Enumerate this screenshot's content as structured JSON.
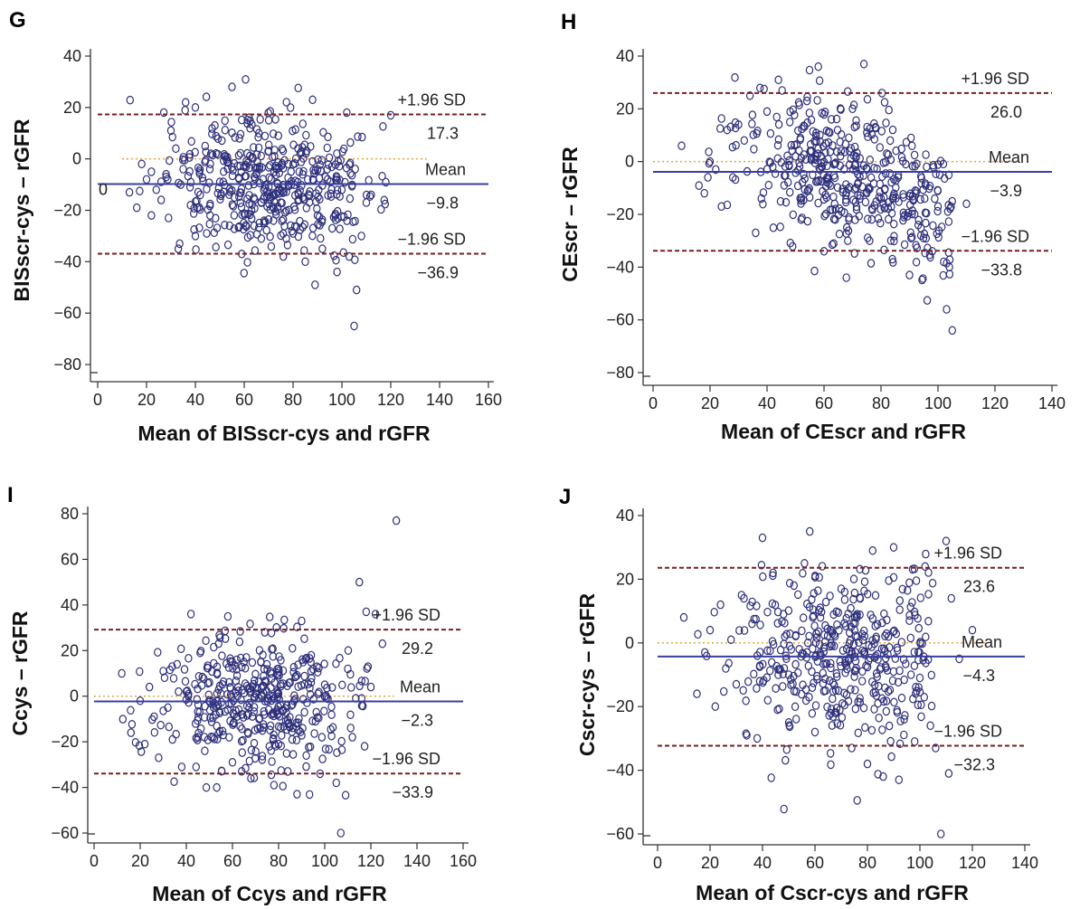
{
  "chart_data": [
    {
      "id": "G",
      "type": "scatter",
      "panel_letter": "G",
      "xlabel": "Mean of BISscr-cys and rGFR",
      "ylabel": "BISscr-cys – rGFR",
      "xlim": [
        0,
        160
      ],
      "ylim": [
        -85,
        45
      ],
      "xticks": [
        0,
        20,
        40,
        60,
        80,
        100,
        120,
        140,
        160
      ],
      "yticks": [
        -80,
        -60,
        -40,
        -20,
        0,
        20,
        40
      ],
      "xtick_labels": [
        "0",
        "20",
        "40",
        "60",
        "80",
        "100",
        "120",
        "140",
        "160"
      ],
      "ytick_labels": [
        "−80",
        "−60",
        "−40",
        "−20",
        "0",
        "20",
        "40"
      ],
      "extra_text": "0",
      "zero_line_range": [
        10,
        135
      ],
      "mean": -9.8,
      "upper": 17.3,
      "lower": -36.9,
      "lines": [
        {
          "label": "+1.96 SD",
          "value_label": "17.3",
          "value": 17.3
        },
        {
          "label": "Mean",
          "value_label": "−9.8",
          "value": -9.8
        },
        {
          "label": "−1.96 SD",
          "value_label": "−36.9",
          "value": -36.9
        }
      ],
      "seed": 7,
      "n_points": 420,
      "points": [
        [
          13,
          -13
        ],
        [
          16,
          -19
        ],
        [
          18,
          -2
        ],
        [
          20,
          -8
        ],
        [
          22,
          -5
        ],
        [
          22,
          -22
        ],
        [
          24,
          -12
        ],
        [
          26,
          -16
        ],
        [
          28,
          -6
        ],
        [
          29,
          -23
        ],
        [
          30,
          11
        ],
        [
          32,
          4
        ],
        [
          33,
          -35
        ],
        [
          34,
          -10
        ],
        [
          35,
          -4
        ],
        [
          36,
          22
        ],
        [
          38,
          -18
        ],
        [
          40,
          -30
        ],
        [
          40,
          20
        ],
        [
          42,
          -14
        ],
        [
          44,
          5
        ],
        [
          46,
          -22
        ],
        [
          48,
          13
        ],
        [
          50,
          -9
        ],
        [
          52,
          1
        ],
        [
          54,
          -26
        ],
        [
          55,
          28
        ],
        [
          56,
          -15
        ],
        [
          58,
          8
        ],
        [
          59,
          -37
        ],
        [
          60,
          -3
        ],
        [
          62,
          16
        ],
        [
          63,
          -20
        ],
        [
          65,
          -6
        ],
        [
          66,
          10
        ],
        [
          67,
          -31
        ],
        [
          68,
          -12
        ],
        [
          70,
          3
        ],
        [
          72,
          -24
        ],
        [
          74,
          9
        ],
        [
          75,
          -17
        ],
        [
          76,
          -38
        ],
        [
          78,
          -2
        ],
        [
          80,
          -29
        ],
        [
          82,
          4
        ],
        [
          84,
          -15
        ],
        [
          85,
          -40
        ],
        [
          86,
          -8
        ],
        [
          88,
          23
        ],
        [
          89,
          -49
        ],
        [
          90,
          -22
        ],
        [
          92,
          -35
        ],
        [
          94,
          -4
        ],
        [
          96,
          -27
        ],
        [
          98,
          -44
        ],
        [
          100,
          -12
        ],
        [
          102,
          18
        ],
        [
          103,
          -38
        ],
        [
          105,
          -65
        ],
        [
          106,
          -51
        ],
        [
          108,
          -30
        ],
        [
          110,
          -17
        ],
        [
          112,
          -14
        ],
        [
          120,
          17
        ]
      ]
    },
    {
      "id": "H",
      "type": "scatter",
      "panel_letter": "H",
      "xlabel": "Mean of CEscr and rGFR",
      "ylabel": "CEscr – rGFR",
      "xlim": [
        0,
        140
      ],
      "ylim": [
        -85,
        45
      ],
      "xticks": [
        0,
        20,
        40,
        60,
        80,
        100,
        120,
        140
      ],
      "yticks": [
        -80,
        -60,
        -40,
        -20,
        0,
        20,
        40
      ],
      "xtick_labels": [
        "0",
        "20",
        "40",
        "60",
        "80",
        "100",
        "120",
        "140"
      ],
      "ytick_labels": [
        "−80",
        "−60",
        "−40",
        "−20",
        "0",
        "20",
        "40"
      ],
      "extra_text": "",
      "zero_line_range": [
        0,
        128
      ],
      "mean": -3.9,
      "upper": 26.0,
      "lower": -33.8,
      "lines": [
        {
          "label": "+1.96 SD",
          "value_label": "26.0",
          "value": 26.0
        },
        {
          "label": "Mean",
          "value_label": "−3.9",
          "value": -3.9
        },
        {
          "label": "−1.96 SD",
          "value_label": "−33.8",
          "value": -33.8
        }
      ],
      "seed": 11,
      "n_points": 420,
      "points": [
        [
          10,
          6
        ],
        [
          18,
          -12
        ],
        [
          20,
          0
        ],
        [
          22,
          -3
        ],
        [
          24,
          -17
        ],
        [
          26,
          12
        ],
        [
          28,
          -6
        ],
        [
          30,
          14
        ],
        [
          32,
          8
        ],
        [
          34,
          25
        ],
        [
          36,
          -27
        ],
        [
          38,
          -14
        ],
        [
          40,
          19
        ],
        [
          42,
          -2
        ],
        [
          44,
          31
        ],
        [
          46,
          -9
        ],
        [
          48,
          15
        ],
        [
          50,
          2
        ],
        [
          52,
          -22
        ],
        [
          54,
          23
        ],
        [
          56,
          -5
        ],
        [
          58,
          36
        ],
        [
          60,
          -34
        ],
        [
          62,
          11
        ],
        [
          64,
          -18
        ],
        [
          66,
          4
        ],
        [
          68,
          -25
        ],
        [
          70,
          20
        ],
        [
          72,
          -8
        ],
        [
          74,
          37
        ],
        [
          76,
          -30
        ],
        [
          78,
          13
        ],
        [
          80,
          -14
        ],
        [
          82,
          3
        ],
        [
          84,
          -37
        ],
        [
          86,
          -6
        ],
        [
          88,
          -21
        ],
        [
          90,
          -43
        ],
        [
          92,
          -11
        ],
        [
          94,
          -28
        ],
        [
          96,
          -2
        ],
        [
          98,
          -34
        ],
        [
          100,
          -17
        ],
        [
          102,
          -38
        ],
        [
          103,
          -56
        ],
        [
          104,
          -40
        ],
        [
          105,
          -64
        ],
        [
          110,
          -16
        ]
      ]
    },
    {
      "id": "I",
      "type": "scatter",
      "panel_letter": "I",
      "xlabel": "Mean of Ccys and rGFR",
      "ylabel": "Ccys – rGFR",
      "xlim": [
        0,
        160
      ],
      "ylim": [
        -62,
        85
      ],
      "xticks": [
        0,
        20,
        40,
        60,
        80,
        100,
        120,
        140,
        160
      ],
      "yticks": [
        -60,
        -40,
        -20,
        0,
        20,
        40,
        60,
        80
      ],
      "xtick_labels": [
        "0",
        "20",
        "40",
        "60",
        "80",
        "100",
        "120",
        "140",
        "160"
      ],
      "ytick_labels": [
        "−60",
        "−40",
        "−20",
        "0",
        "20",
        "40",
        "60",
        "80"
      ],
      "extra_text": "",
      "zero_line_range": [
        0,
        130
      ],
      "mean": -2.3,
      "upper": 29.2,
      "lower": -33.9,
      "lines": [
        {
          "label": "+1.96 SD",
          "value_label": "29.2",
          "value": 29.2
        },
        {
          "label": "Mean",
          "value_label": "−2.3",
          "value": -2.3
        },
        {
          "label": "−1.96 SD",
          "value_label": "−33.9",
          "value": -33.9
        }
      ],
      "seed": 23,
      "n_points": 400,
      "points": [
        [
          12,
          10
        ],
        [
          16,
          -16
        ],
        [
          20,
          -2
        ],
        [
          22,
          -21
        ],
        [
          24,
          4
        ],
        [
          26,
          -9
        ],
        [
          28,
          -27
        ],
        [
          30,
          11
        ],
        [
          32,
          -5
        ],
        [
          34,
          -19
        ],
        [
          36,
          14
        ],
        [
          38,
          -31
        ],
        [
          40,
          2
        ],
        [
          42,
          36
        ],
        [
          44,
          -12
        ],
        [
          46,
          19
        ],
        [
          48,
          -24
        ],
        [
          50,
          6
        ],
        [
          52,
          -3
        ],
        [
          54,
          23
        ],
        [
          56,
          -17
        ],
        [
          58,
          35
        ],
        [
          60,
          -29
        ],
        [
          62,
          9
        ],
        [
          64,
          -8
        ],
        [
          66,
          17
        ],
        [
          68,
          -36
        ],
        [
          70,
          1
        ],
        [
          72,
          -14
        ],
        [
          74,
          28
        ],
        [
          76,
          -22
        ],
        [
          78,
          -39
        ],
        [
          80,
          12
        ],
        [
          82,
          -6
        ],
        [
          84,
          -33
        ],
        [
          86,
          21
        ],
        [
          88,
          -43
        ],
        [
          90,
          33
        ],
        [
          92,
          -26
        ],
        [
          94,
          15
        ],
        [
          96,
          -11
        ],
        [
          98,
          -34
        ],
        [
          100,
          5
        ],
        [
          105,
          -38
        ],
        [
          107,
          -60
        ],
        [
          110,
          12
        ],
        [
          112,
          -18
        ],
        [
          115,
          50
        ],
        [
          116,
          -1
        ],
        [
          118,
          37
        ],
        [
          120,
          4
        ],
        [
          122,
          36
        ],
        [
          125,
          23
        ],
        [
          131,
          77
        ]
      ]
    },
    {
      "id": "J",
      "type": "scatter",
      "panel_letter": "J",
      "xlabel": "Mean of Cscr-cys and rGFR",
      "ylabel": "Cscr-cys – rGFR",
      "xlim": [
        0,
        140
      ],
      "ylim": [
        -62,
        45
      ],
      "xticks": [
        0,
        20,
        40,
        60,
        80,
        100,
        120,
        140
      ],
      "yticks": [
        -60,
        -40,
        -20,
        0,
        20,
        40
      ],
      "xtick_labels": [
        "0",
        "20",
        "40",
        "60",
        "80",
        "100",
        "120",
        "140"
      ],
      "ytick_labels": [
        "−60",
        "−40",
        "−20",
        "0",
        "20",
        "40"
      ],
      "extra_text": "",
      "zero_line_range": [
        0,
        125
      ],
      "mean": -4.3,
      "upper": 23.6,
      "lower": -32.3,
      "lines": [
        {
          "label": "+1.96 SD",
          "value_label": "23.6",
          "value": 23.6
        },
        {
          "label": "Mean",
          "value_label": "−4.3",
          "value": -4.3
        },
        {
          "label": "−1.96 SD",
          "value_label": "−32.3",
          "value": -32.3
        }
      ],
      "seed": 31,
      "n_points": 400,
      "points": [
        [
          10,
          8
        ],
        [
          15,
          -16
        ],
        [
          18,
          -3
        ],
        [
          20,
          4
        ],
        [
          22,
          -20
        ],
        [
          24,
          12
        ],
        [
          26,
          -8
        ],
        [
          28,
          1
        ],
        [
          30,
          -13
        ],
        [
          32,
          15
        ],
        [
          34,
          -29
        ],
        [
          36,
          6
        ],
        [
          38,
          -4
        ],
        [
          40,
          33
        ],
        [
          42,
          -18
        ],
        [
          44,
          22
        ],
        [
          46,
          -10
        ],
        [
          48,
          9
        ],
        [
          50,
          -25
        ],
        [
          52,
          18
        ],
        [
          54,
          -2
        ],
        [
          56,
          25
        ],
        [
          58,
          35
        ],
        [
          60,
          -28
        ],
        [
          62,
          11
        ],
        [
          64,
          -15
        ],
        [
          66,
          4
        ],
        [
          68,
          -22
        ],
        [
          70,
          17
        ],
        [
          72,
          -7
        ],
        [
          74,
          -33
        ],
        [
          76,
          8
        ],
        [
          78,
          -12
        ],
        [
          80,
          -38
        ],
        [
          82,
          29
        ],
        [
          84,
          -19
        ],
        [
          86,
          -42
        ],
        [
          88,
          2
        ],
        [
          90,
          30
        ],
        [
          92,
          -43
        ],
        [
          94,
          -24
        ],
        [
          96,
          7
        ],
        [
          98,
          -31
        ],
        [
          100,
          -11
        ],
        [
          102,
          24
        ],
        [
          104,
          -26
        ],
        [
          106,
          -33
        ],
        [
          108,
          -60
        ],
        [
          110,
          32
        ],
        [
          111,
          -41
        ],
        [
          112,
          14
        ],
        [
          115,
          -5
        ],
        [
          120,
          4
        ]
      ]
    }
  ]
}
